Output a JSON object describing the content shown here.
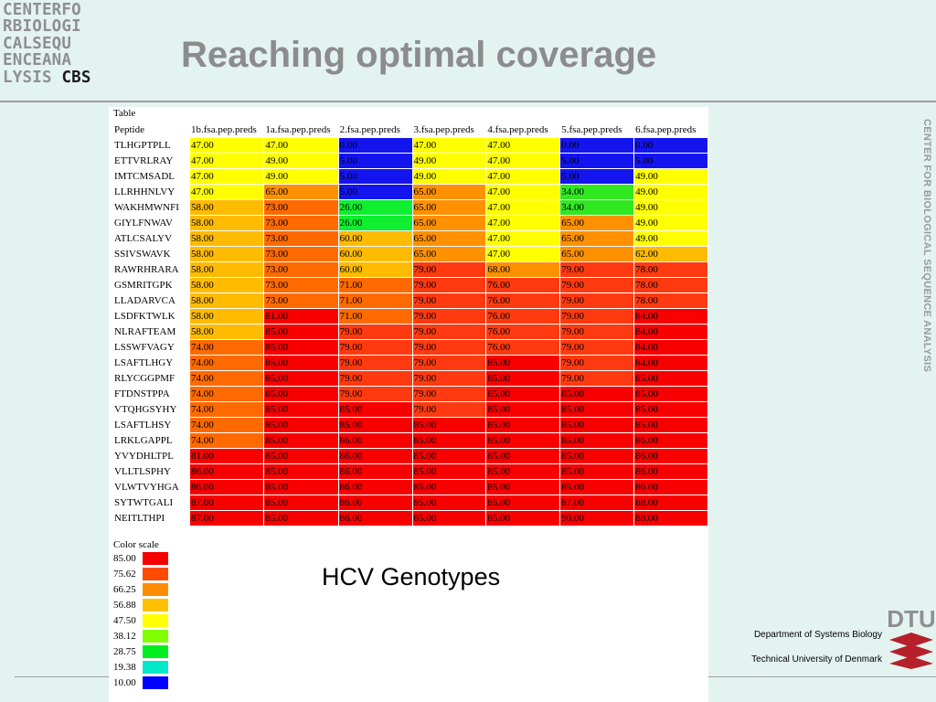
{
  "header": {
    "logo_lines": [
      "CENTERFO",
      "RBIOLOGI",
      "CALSEQU",
      "ENCEANA",
      "LYSIS"
    ],
    "logo_brand": "CBS",
    "title": "Reaching optimal coverage",
    "side_text": "CENTER FOR BIOLOGICAL SEQUENCE ANALYSIS"
  },
  "table": {
    "caption": "Table",
    "columns": [
      "Peptide",
      "1b.fsa.pep.preds",
      "1a.fsa.pep.preds",
      "2.fsa.pep.preds",
      "3.fsa.pep.preds",
      "4.fsa.pep.preds",
      "5.fsa.pep.preds",
      "6.fsa.pep.preds"
    ],
    "rows": [
      {
        "peptide": "TLHGPTPLL",
        "values": [
          "47.00",
          "47.00",
          "0.00",
          "47.00",
          "47.00",
          "0.00",
          "0.00"
        ]
      },
      {
        "peptide": "ETTVRLRAY",
        "values": [
          "47.00",
          "49.00",
          "5.00",
          "49.00",
          "47.00",
          "5.00",
          "5.00"
        ]
      },
      {
        "peptide": "IMTCMSADL",
        "values": [
          "47.00",
          "49.00",
          "5.00",
          "49.00",
          "47.00",
          "5.00",
          "49.00"
        ]
      },
      {
        "peptide": "LLRHHNLVY",
        "values": [
          "47.00",
          "65.00",
          "5.00",
          "65.00",
          "47.00",
          "34.00",
          "49.00"
        ]
      },
      {
        "peptide": "WAKHMWNFI",
        "values": [
          "58.00",
          "73.00",
          "26.00",
          "65.00",
          "47.00",
          "34.00",
          "49.00"
        ]
      },
      {
        "peptide": "GIYLFNWAV",
        "values": [
          "58.00",
          "73.00",
          "26.00",
          "65.00",
          "47.00",
          "65.00",
          "49.00"
        ]
      },
      {
        "peptide": "ATLCSALYV",
        "values": [
          "58.00",
          "73.00",
          "60.00",
          "65.00",
          "47.00",
          "65.00",
          "49.00"
        ]
      },
      {
        "peptide": "SSIVSWAVK",
        "values": [
          "58.00",
          "73.00",
          "60.00",
          "65.00",
          "47.00",
          "65.00",
          "62.00"
        ]
      },
      {
        "peptide": "RAWRHRARA",
        "values": [
          "58.00",
          "73.00",
          "60.00",
          "79.00",
          "68.00",
          "79.00",
          "78.00"
        ]
      },
      {
        "peptide": "GSMRITGPK",
        "values": [
          "58.00",
          "73.00",
          "71.00",
          "79.00",
          "76.00",
          "79.00",
          "78.00"
        ]
      },
      {
        "peptide": "LLADARVCA",
        "values": [
          "58.00",
          "73.00",
          "71.00",
          "79.00",
          "76.00",
          "79.00",
          "78.00"
        ]
      },
      {
        "peptide": "LSDFKTWLK",
        "values": [
          "58.00",
          "81.00",
          "71.00",
          "79.00",
          "76.00",
          "79.00",
          "84.00"
        ]
      },
      {
        "peptide": "NLRAFTEAM",
        "values": [
          "58.00",
          "85.00",
          "79.00",
          "79.00",
          "76.00",
          "79.00",
          "84.00"
        ]
      },
      {
        "peptide": "LSSWFVAGY",
        "values": [
          "74.00",
          "85.00",
          "79.00",
          "79.00",
          "76.00",
          "79.00",
          "84.00"
        ]
      },
      {
        "peptide": "LSAFTLHGY",
        "values": [
          "74.00",
          "85.00",
          "79.00",
          "79.00",
          "85.00",
          "79.00",
          "84.00"
        ]
      },
      {
        "peptide": "RLYCGGPMF",
        "values": [
          "74.00",
          "85.00",
          "79.00",
          "79.00",
          "85.00",
          "79.00",
          "85.00"
        ]
      },
      {
        "peptide": "FTDNSTPPA",
        "values": [
          "74.00",
          "85.00",
          "79.00",
          "79.00",
          "85.00",
          "85.00",
          "85.00"
        ]
      },
      {
        "peptide": "VTQHGSYHY",
        "values": [
          "74.00",
          "85.00",
          "85.00",
          "79.00",
          "85.00",
          "85.00",
          "85.00"
        ]
      },
      {
        "peptide": "LSAFTLHSY",
        "values": [
          "74.00",
          "85.00",
          "85.00",
          "85.00",
          "85.00",
          "85.00",
          "85.00"
        ]
      },
      {
        "peptide": "LRKLGAPPL",
        "values": [
          "74.00",
          "85.00",
          "86.00",
          "85.00",
          "85.00",
          "85.00",
          "86.00"
        ]
      },
      {
        "peptide": "YVYDHLTPL",
        "values": [
          "81.00",
          "85.00",
          "86.00",
          "85.00",
          "85.00",
          "85.00",
          "86.00"
        ]
      },
      {
        "peptide": "VLLTLSPHY",
        "values": [
          "86.00",
          "85.00",
          "86.00",
          "85.00",
          "85.00",
          "85.00",
          "86.00"
        ]
      },
      {
        "peptide": "VLWTVYHGA",
        "values": [
          "86.00",
          "85.00",
          "86.00",
          "85.00",
          "85.00",
          "85.00",
          "86.00"
        ]
      },
      {
        "peptide": "SYTWTGALI",
        "values": [
          "87.00",
          "85.00",
          "86.00",
          "85.00",
          "85.00",
          "87.00",
          "88.00"
        ]
      },
      {
        "peptide": "NEITLTHPI",
        "values": [
          "87.00",
          "85.00",
          "86.00",
          "85.00",
          "85.00",
          "90.00",
          "88.00"
        ]
      }
    ]
  },
  "color_scale": {
    "title": "Color scale",
    "entries": [
      {
        "label": "85.00",
        "color": "#f80000"
      },
      {
        "label": "75.62",
        "color": "#ff4a00"
      },
      {
        "label": "66.25",
        "color": "#ff8c00"
      },
      {
        "label": "56.88",
        "color": "#ffc000"
      },
      {
        "label": "47.50",
        "color": "#ffff00"
      },
      {
        "label": "38.12",
        "color": "#80ff00"
      },
      {
        "label": "28.75",
        "color": "#00ee20"
      },
      {
        "label": "19.38",
        "color": "#00e8c8"
      },
      {
        "label": "10.00",
        "color": "#0000ff"
      }
    ]
  },
  "subtitle": "HCV Genotypes",
  "footer": {
    "dept": "Department of Systems Biology",
    "university": "Technical University of Denmark",
    "dtu_logo": "DTU"
  }
}
